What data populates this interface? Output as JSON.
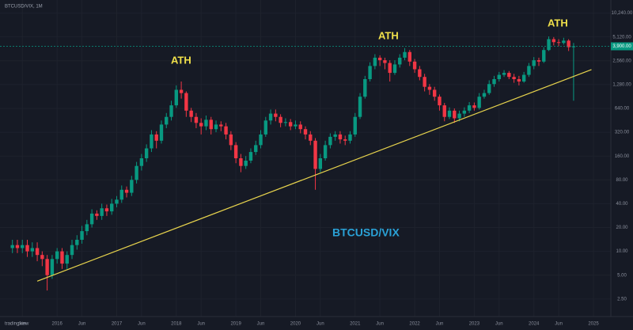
{
  "chart_data": {
    "type": "candlestick",
    "header": "BTCUSD/VIX, 1M",
    "series": [
      {
        "name": "BTCUSD/VIX",
        "up_color": "#089981",
        "down_color": "#f23645",
        "open": [
          11,
          12,
          11,
          12,
          10,
          11,
          9,
          8,
          5,
          8,
          10,
          7,
          9,
          12,
          14,
          18,
          22,
          30,
          28,
          35,
          32,
          40,
          45,
          60,
          55,
          80,
          120,
          150,
          200,
          300,
          250,
          400,
          500,
          700,
          1100,
          1000,
          600,
          500,
          420,
          380,
          460,
          350,
          400,
          380,
          300,
          220,
          150,
          120,
          140,
          180,
          220,
          300,
          450,
          550,
          500,
          420,
          430,
          380,
          400,
          350,
          300,
          250,
          110,
          150,
          220,
          280,
          300,
          260,
          250,
          300,
          500,
          900,
          1500,
          2200,
          2800,
          2600,
          2400,
          1800,
          2300,
          2800,
          3300,
          2500,
          2000,
          1600,
          1200,
          1100,
          900,
          700,
          500,
          600,
          480,
          550,
          600,
          700,
          650,
          900,
          1000,
          1300,
          1500,
          1700,
          1800,
          1600,
          1500,
          1400,
          1700,
          2200,
          2600,
          2500,
          3500,
          4800,
          4400,
          4300,
          4600,
          3800
        ],
        "high": [
          14,
          14,
          14,
          14,
          13,
          13,
          10,
          9,
          9,
          11,
          11,
          10,
          14,
          16,
          21,
          25,
          34,
          33,
          40,
          39,
          46,
          50,
          68,
          66,
          90,
          135,
          170,
          225,
          340,
          330,
          450,
          560,
          800,
          1250,
          1400,
          1050,
          650,
          560,
          480,
          520,
          500,
          450,
          440,
          420,
          330,
          240,
          170,
          160,
          200,
          250,
          340,
          500,
          620,
          620,
          540,
          480,
          470,
          450,
          440,
          380,
          330,
          270,
          170,
          250,
          310,
          330,
          330,
          290,
          330,
          560,
          1000,
          1650,
          2450,
          3100,
          3000,
          2800,
          2600,
          2600,
          3100,
          3700,
          3500,
          2700,
          2200,
          1750,
          1300,
          1200,
          960,
          750,
          660,
          640,
          600,
          660,
          770,
          760,
          1000,
          1100,
          1450,
          1650,
          1850,
          1950,
          1900,
          1750,
          1650,
          1850,
          2400,
          2850,
          2800,
          3800,
          5200,
          5100,
          4800,
          5000,
          4800,
          4300
        ],
        "low": [
          9.5,
          9.5,
          9.5,
          8.5,
          8.5,
          7.5,
          6.5,
          3.2,
          4.5,
          7,
          6,
          6,
          8,
          10.5,
          12.5,
          16,
          20,
          25,
          25,
          28,
          29,
          36,
          41,
          48,
          50,
          72,
          105,
          135,
          180,
          200,
          230,
          360,
          450,
          650,
          850,
          500,
          430,
          360,
          300,
          340,
          300,
          320,
          330,
          260,
          190,
          130,
          100,
          110,
          130,
          165,
          200,
          280,
          400,
          440,
          370,
          380,
          340,
          350,
          310,
          260,
          220,
          60,
          100,
          140,
          200,
          250,
          230,
          220,
          230,
          280,
          470,
          850,
          1400,
          2000,
          2200,
          2000,
          1400,
          1700,
          2100,
          2600,
          2200,
          1800,
          1450,
          1050,
          950,
          800,
          600,
          440,
          470,
          420,
          440,
          500,
          560,
          600,
          620,
          850,
          950,
          1200,
          1400,
          1600,
          1500,
          1350,
          1250,
          1350,
          1600,
          2000,
          2200,
          2400,
          3400,
          4000,
          3900,
          4100,
          3400,
          800
        ],
        "close": [
          12,
          11,
          12,
          10,
          11,
          9,
          8,
          5,
          8,
          10,
          7,
          9,
          12,
          14,
          18,
          22,
          30,
          28,
          35,
          32,
          40,
          45,
          60,
          55,
          80,
          120,
          150,
          200,
          300,
          250,
          400,
          500,
          700,
          1100,
          1000,
          600,
          500,
          420,
          380,
          460,
          350,
          400,
          380,
          300,
          220,
          150,
          120,
          140,
          180,
          220,
          300,
          450,
          550,
          500,
          420,
          430,
          380,
          400,
          350,
          300,
          250,
          110,
          150,
          220,
          280,
          300,
          260,
          250,
          300,
          500,
          900,
          1500,
          2200,
          2800,
          2600,
          2400,
          1800,
          2300,
          2800,
          3300,
          2500,
          2000,
          1600,
          1200,
          1100,
          900,
          700,
          500,
          600,
          480,
          550,
          600,
          700,
          650,
          900,
          1000,
          1300,
          1500,
          1700,
          1800,
          1600,
          1500,
          1400,
          1700,
          2200,
          2600,
          2500,
          3500,
          4800,
          4400,
          4300,
          4600,
          3800,
          3900
        ],
        "last_label": "3,900.00"
      }
    ],
    "xlim": [
      -2.5,
      120.5
    ],
    "xticks": [
      {
        "value": 2,
        "label": "Jun"
      },
      {
        "value": 9,
        "label": "2016"
      },
      {
        "value": 14,
        "label": "Jun"
      },
      {
        "value": 21,
        "label": "2017"
      },
      {
        "value": 26,
        "label": "Jun"
      },
      {
        "value": 33,
        "label": "2018"
      },
      {
        "value": 38,
        "label": "Jun"
      },
      {
        "value": 45,
        "label": "2019"
      },
      {
        "value": 50,
        "label": "Jun"
      },
      {
        "value": 57,
        "label": "2020"
      },
      {
        "value": 62,
        "label": "Jun"
      },
      {
        "value": 69,
        "label": "2021"
      },
      {
        "value": 74,
        "label": "Jun"
      },
      {
        "value": 81,
        "label": "2022"
      },
      {
        "value": 86,
        "label": "Jun"
      },
      {
        "value": 93,
        "label": "2023"
      },
      {
        "value": 98,
        "label": "Jun"
      },
      {
        "value": 105,
        "label": "2024"
      },
      {
        "value": 110,
        "label": "Jun"
      },
      {
        "value": 117,
        "label": "2025"
      }
    ],
    "ylim": [
      1.5,
      15000
    ],
    "log_y": true,
    "yticks": [
      {
        "value": 2.5,
        "label": "2.50"
      },
      {
        "value": 5,
        "label": "5.00"
      },
      {
        "value": 10,
        "label": "10.00"
      },
      {
        "value": 20,
        "label": "20.00"
      },
      {
        "value": 40,
        "label": "40.00"
      },
      {
        "value": 80,
        "label": "80.00"
      },
      {
        "value": 160,
        "label": "160.00"
      },
      {
        "value": 320,
        "label": "320.00"
      },
      {
        "value": 640,
        "label": "640.00"
      },
      {
        "value": 1280,
        "label": "1,280.00"
      },
      {
        "value": 2560,
        "label": "2,560.00"
      },
      {
        "value": 5120,
        "label": "5,120.00"
      },
      {
        "value": 10240,
        "label": "10,240.00"
      }
    ],
    "grid": true,
    "trendline": {
      "x": [
        5,
        116.6
      ],
      "y": [
        4.2,
        1980
      ],
      "color": "#e8d44d"
    },
    "annotations": [
      "ATH",
      "ATH",
      "ATH"
    ],
    "watermark": "tradingview"
  }
}
